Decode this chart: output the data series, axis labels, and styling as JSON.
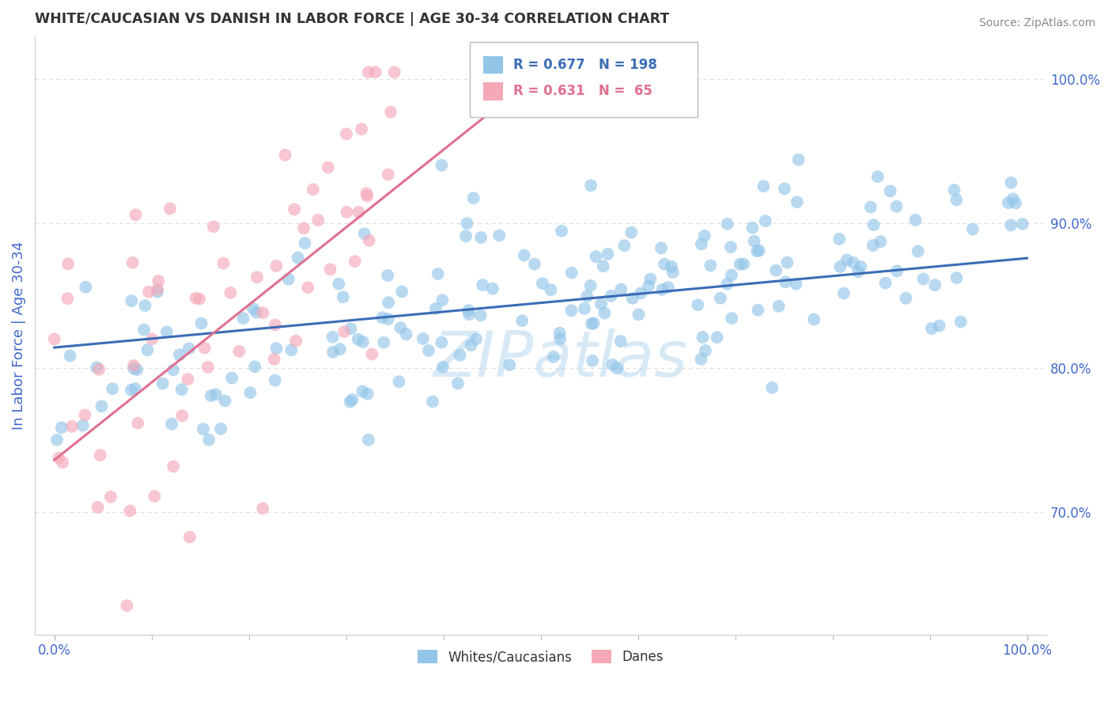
{
  "title": "WHITE/CAUCASIAN VS DANISH IN LABOR FORCE | AGE 30-34 CORRELATION CHART",
  "source": "Source: ZipAtlas.com",
  "ylabel": "In Labor Force | Age 30-34",
  "yticks": [
    0.7,
    0.8,
    0.9,
    1.0
  ],
  "ytick_labels": [
    "70.0%",
    "80.0%",
    "90.0%",
    "100.0%"
  ],
  "xtick_labels": [
    "0.0%",
    "100.0%"
  ],
  "xlim": [
    -0.02,
    1.02
  ],
  "ylim": [
    0.615,
    1.03
  ],
  "blue_R": 0.677,
  "blue_N": 198,
  "pink_R": 0.631,
  "pink_N": 65,
  "blue_color": "#92C5E8",
  "pink_color": "#F4A8B8",
  "blue_line_color": "#3B6DB5",
  "pink_line_color": "#E07090",
  "watermark": "ZIPatlas",
  "watermark_color": "#B8D8F0",
  "legend_label_blue": "Whites/Caucasians",
  "legend_label_pink": "Danes",
  "background_color": "#FFFFFF",
  "grid_color": "#DDDDDD",
  "title_color": "#333333",
  "axis_label_color": "#4169CD",
  "tick_label_color": "#4169CD",
  "blue_trend": [
    0.0,
    1.0,
    0.814,
    0.876
  ],
  "pink_trend": [
    0.0,
    0.5,
    0.736,
    1.005
  ]
}
